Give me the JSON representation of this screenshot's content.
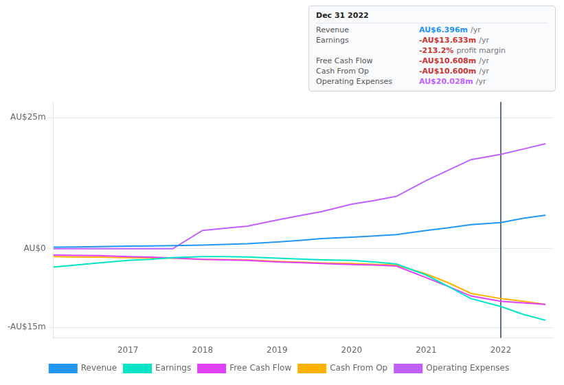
{
  "chart_data": {
    "type": "line",
    "x": [
      2016.0,
      2016.3,
      2016.6,
      2017.0,
      2017.3,
      2017.6,
      2018.0,
      2018.3,
      2018.6,
      2019.0,
      2019.3,
      2019.6,
      2020.0,
      2020.3,
      2020.6,
      2021.0,
      2021.3,
      2021.6,
      2022.0,
      2022.3,
      2022.6
    ],
    "series": [
      {
        "name": "Revenue",
        "color": "#2196f3",
        "values": [
          0.3,
          0.35,
          0.42,
          0.5,
          0.55,
          0.62,
          0.7,
          0.82,
          0.95,
          1.3,
          1.6,
          1.95,
          2.2,
          2.45,
          2.7,
          3.5,
          4.0,
          4.6,
          5.0,
          5.8,
          6.4
        ]
      },
      {
        "name": "Earnings",
        "color": "#00e5c8",
        "values": [
          -3.5,
          -3.1,
          -2.7,
          -2.2,
          -2.0,
          -1.7,
          -1.5,
          -1.5,
          -1.55,
          -1.8,
          -1.95,
          -2.1,
          -2.2,
          -2.5,
          -2.9,
          -5.0,
          -7.2,
          -9.5,
          -11.0,
          -12.5,
          -13.633
        ]
      },
      {
        "name": "Free Cash Flow",
        "color": "#e040fb",
        "values": [
          -1.2,
          -1.25,
          -1.3,
          -1.5,
          -1.6,
          -1.75,
          -2.0,
          -2.1,
          -2.2,
          -2.5,
          -2.65,
          -2.8,
          -3.0,
          -3.1,
          -3.3,
          -5.5,
          -7.2,
          -9.0,
          -10.0,
          -10.3,
          -10.608
        ]
      },
      {
        "name": "Cash From Op",
        "color": "#ffb300",
        "values": [
          -1.5,
          -1.55,
          -1.6,
          -1.7,
          -1.75,
          -1.8,
          -2.0,
          -2.05,
          -2.1,
          -2.4,
          -2.55,
          -2.7,
          -2.8,
          -2.95,
          -3.1,
          -4.8,
          -6.5,
          -8.5,
          -9.5,
          -10.0,
          -10.6
        ]
      },
      {
        "name": "Operating Expenses",
        "color": "#c060ff",
        "values": [
          0.0,
          0.0,
          0.0,
          0.0,
          0.0,
          0.0,
          3.5,
          3.9,
          4.3,
          5.5,
          6.3,
          7.1,
          8.5,
          9.2,
          10.0,
          13.0,
          15.0,
          17.0,
          18.0,
          19.0,
          20.028
        ]
      }
    ],
    "xlim": [
      2016.0,
      2022.7
    ],
    "xticks": [
      2017,
      2018,
      2019,
      2020,
      2021,
      2022
    ],
    "ylim": [
      -17,
      28
    ],
    "yticks": [
      {
        "value": 25,
        "label": "AU$25m"
      },
      {
        "value": 0,
        "label": "AU$0"
      },
      {
        "value": -15,
        "label": "-AU$15m"
      }
    ],
    "grid": true,
    "legend": "bottom",
    "annotations": [
      {
        "text": "Dec 31 2022"
      },
      {
        "label": "Revenue",
        "text": "AU$6.396m",
        "color": "#2196f3",
        "suffix": "/yr"
      },
      {
        "label": "Earnings",
        "text": "-AU$13.633m",
        "color": "#cc3333",
        "suffix": "/yr"
      },
      {
        "text": "-213.2%",
        "color": "#cc3333",
        "suffix": "profit margin"
      },
      {
        "label": "Free Cash Flow",
        "text": "-AU$10.608m",
        "color": "#cc3333",
        "suffix": "/yr"
      },
      {
        "label": "Cash From Op",
        "text": "-AU$10.600m",
        "color": "#cc3333",
        "suffix": "/yr"
      },
      {
        "label": "Operating Expenses",
        "text": "AU$20.028m",
        "color": "#c060ff",
        "suffix": "/yr"
      },
      {
        "x": 2022.0,
        "color": "#2a4060"
      }
    ]
  }
}
